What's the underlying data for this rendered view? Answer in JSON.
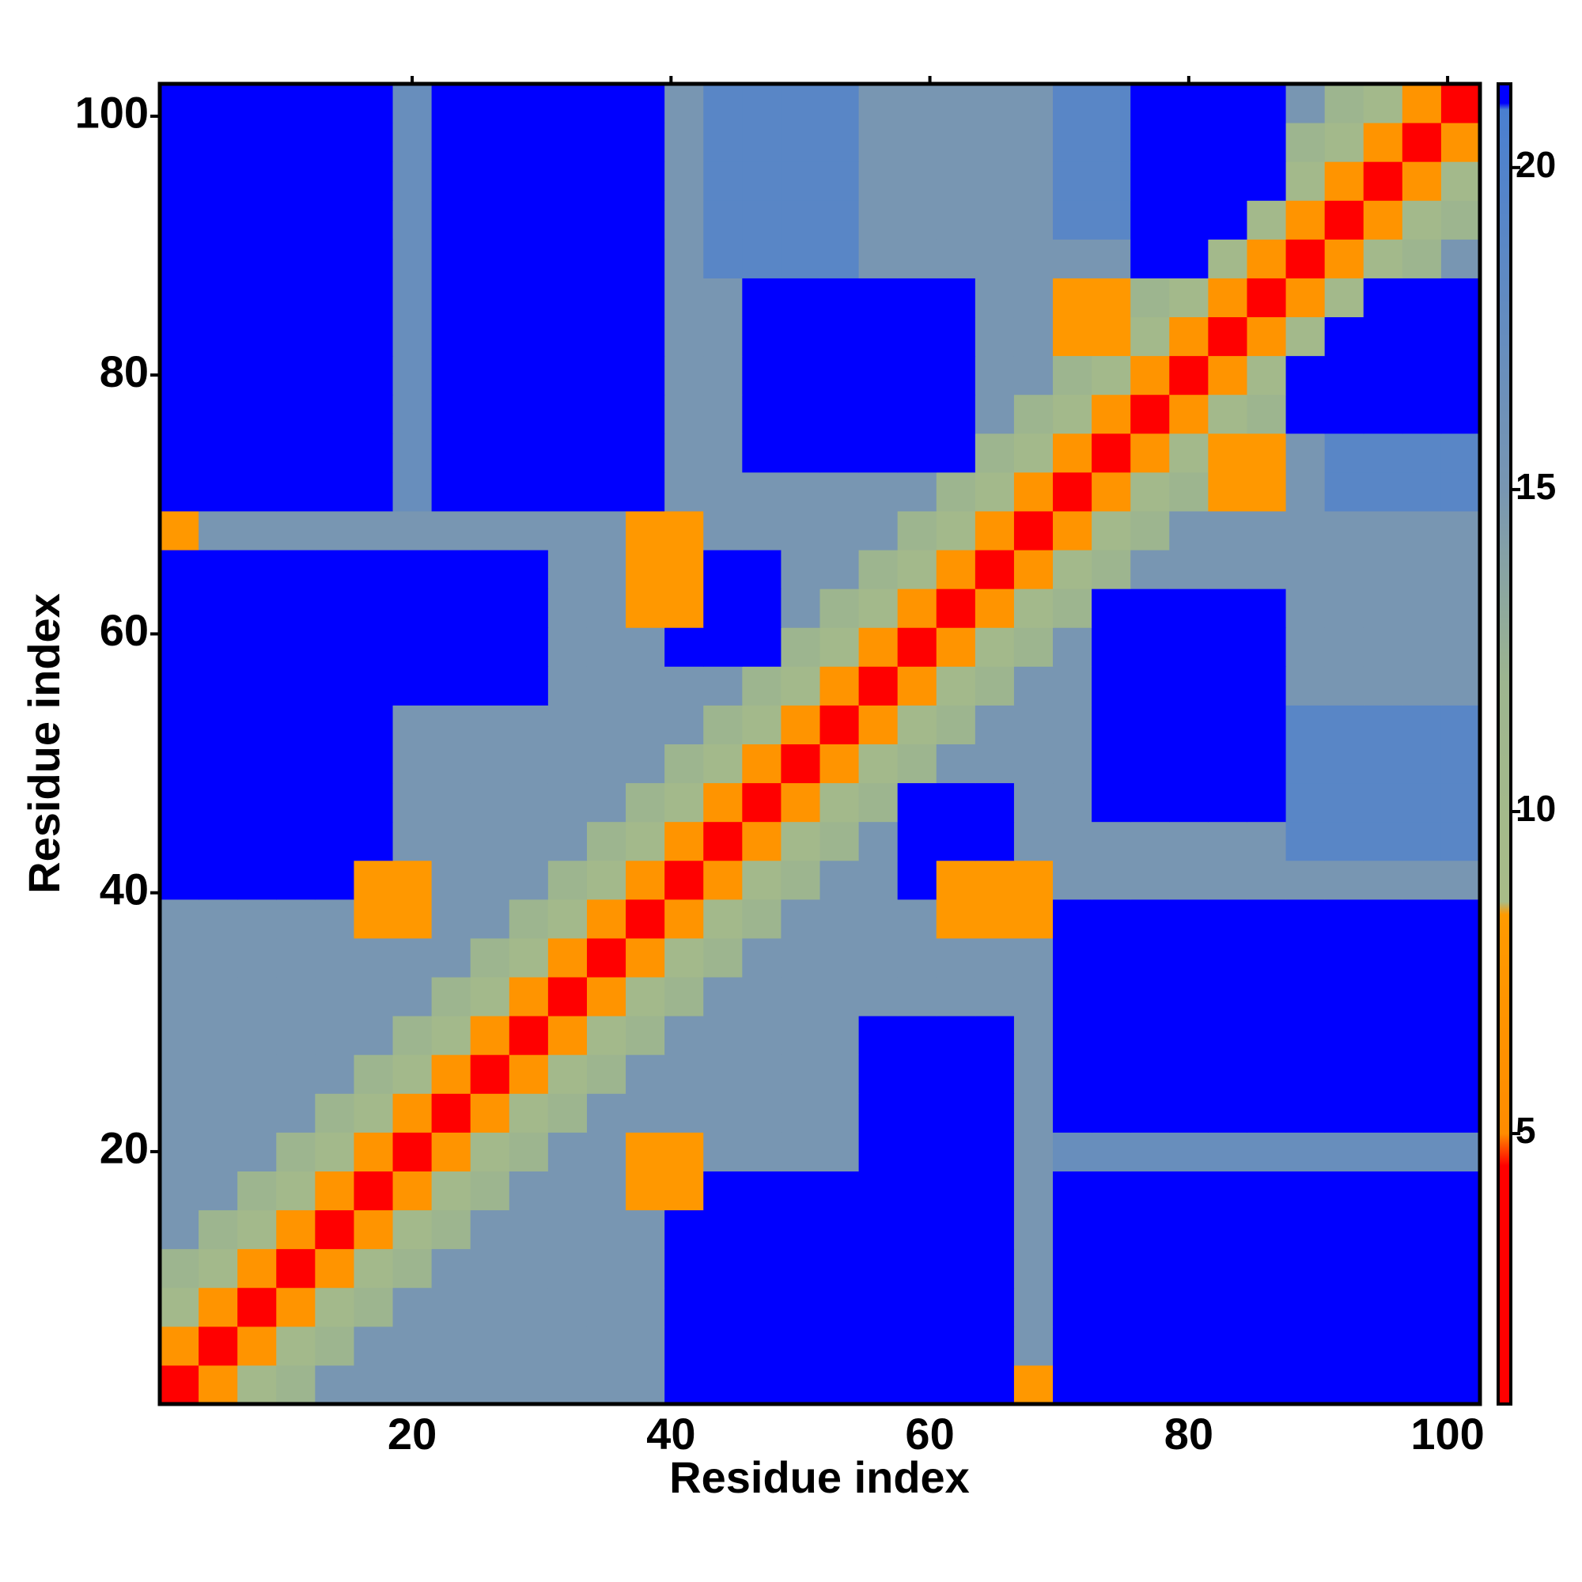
{
  "chart_data": {
    "type": "heatmap",
    "xlabel": "Residue index",
    "ylabel": "Residue index",
    "xlim": [
      0.5,
      102.5
    ],
    "ylim": [
      0.5,
      102.5
    ],
    "xticks": [
      20,
      40,
      60,
      80,
      100
    ],
    "yticks": [
      20,
      40,
      60,
      80,
      100
    ],
    "x_edges": [
      0.5,
      3.5,
      6.5,
      9.5,
      12.5,
      15.5,
      18.5,
      21.5,
      24.5,
      27.5,
      30.5,
      33.5,
      36.5,
      39.5,
      42.5,
      45.5,
      48.5,
      51.5,
      54.5,
      57.5,
      60.5,
      63.5,
      66.5,
      69.5,
      72.5,
      75.5,
      78.5,
      81.5,
      84.5,
      87.5,
      90.5,
      93.5,
      96.5,
      99.5,
      102.5
    ],
    "y_edges": [
      0.5,
      3.5,
      6.5,
      9.5,
      12.5,
      15.5,
      18.5,
      21.5,
      24.5,
      27.5,
      30.5,
      33.5,
      36.5,
      39.5,
      42.5,
      45.5,
      48.5,
      51.5,
      54.5,
      57.5,
      60.5,
      63.5,
      66.5,
      69.5,
      72.5,
      75.5,
      78.5,
      81.5,
      84.5,
      87.5,
      90.5,
      93.5,
      96.5,
      99.5,
      102.5
    ],
    "clim": [
      0.8,
      21.3
    ],
    "cticks": [
      5,
      10,
      15,
      20
    ],
    "colorscale": [
      {
        "value": 0.8,
        "color": "#ff0000"
      },
      {
        "value": 4.5,
        "color": "#ff0000"
      },
      {
        "value": 5.0,
        "color": "#ff8c00"
      },
      {
        "value": 8.4,
        "color": "#ff9a00"
      },
      {
        "value": 8.6,
        "color": "#a8bc88"
      },
      {
        "value": 12,
        "color": "#9db58f"
      },
      {
        "value": 15,
        "color": "#7896b2"
      },
      {
        "value": 20.9,
        "color": "#4a7fd0"
      },
      {
        "value": 21.0,
        "color": "#0000ff"
      },
      {
        "value": 21.3,
        "color": "#0000ff"
      }
    ],
    "z": [
      [
        4,
        7,
        10,
        12,
        15,
        15,
        15,
        15,
        15,
        15,
        15,
        15,
        15,
        21,
        21,
        21,
        21,
        21,
        21,
        21,
        21,
        21,
        8,
        21,
        21,
        21,
        21,
        21,
        21,
        21,
        21,
        21,
        21,
        21
      ],
      [
        7,
        4,
        7,
        10,
        12,
        15,
        15,
        15,
        15,
        15,
        15,
        15,
        15,
        21,
        21,
        21,
        21,
        21,
        21,
        21,
        21,
        21,
        15,
        21,
        21,
        21,
        21,
        21,
        21,
        21,
        21,
        21,
        21,
        21
      ],
      [
        10,
        7,
        4,
        7,
        10,
        12,
        15,
        15,
        15,
        15,
        15,
        15,
        15,
        21,
        21,
        21,
        21,
        21,
        21,
        21,
        21,
        21,
        15,
        21,
        21,
        21,
        21,
        21,
        21,
        21,
        21,
        21,
        21,
        21
      ],
      [
        12,
        10,
        7,
        4,
        7,
        10,
        12,
        15,
        15,
        15,
        15,
        15,
        15,
        21,
        21,
        21,
        21,
        21,
        21,
        21,
        21,
        21,
        15,
        21,
        21,
        21,
        21,
        21,
        21,
        21,
        21,
        21,
        21,
        21
      ],
      [
        15,
        12,
        10,
        7,
        4,
        7,
        10,
        12,
        15,
        15,
        15,
        15,
        15,
        21,
        21,
        21,
        21,
        21,
        21,
        21,
        21,
        21,
        15,
        21,
        21,
        21,
        21,
        21,
        21,
        21,
        21,
        21,
        21,
        21
      ],
      [
        15,
        15,
        12,
        10,
        7,
        4,
        7,
        10,
        12,
        15,
        15,
        15,
        8,
        8,
        21,
        21,
        21,
        21,
        21,
        21,
        21,
        21,
        15,
        21,
        21,
        21,
        21,
        21,
        21,
        21,
        21,
        21,
        21,
        21
      ],
      [
        15,
        15,
        15,
        12,
        10,
        7,
        4,
        7,
        10,
        12,
        15,
        15,
        8,
        8,
        15,
        15,
        15,
        15,
        21,
        21,
        21,
        21,
        15,
        17,
        17,
        17,
        17,
        17,
        17,
        17,
        17,
        17,
        17,
        17
      ],
      [
        15,
        15,
        15,
        15,
        12,
        10,
        7,
        4,
        7,
        10,
        12,
        15,
        15,
        15,
        15,
        15,
        15,
        15,
        21,
        21,
        21,
        21,
        15,
        21,
        21,
        21,
        21,
        21,
        21,
        21,
        21,
        21,
        21,
        21
      ],
      [
        15,
        15,
        15,
        15,
        15,
        12,
        10,
        7,
        4,
        7,
        10,
        12,
        15,
        15,
        15,
        15,
        15,
        15,
        21,
        21,
        21,
        21,
        15,
        21,
        21,
        21,
        21,
        21,
        21,
        21,
        21,
        21,
        21,
        21
      ],
      [
        15,
        15,
        15,
        15,
        15,
        15,
        12,
        10,
        7,
        4,
        7,
        10,
        12,
        15,
        15,
        15,
        15,
        15,
        21,
        21,
        21,
        21,
        15,
        21,
        21,
        21,
        21,
        21,
        21,
        21,
        21,
        21,
        21,
        21
      ],
      [
        15,
        15,
        15,
        15,
        15,
        15,
        15,
        12,
        10,
        7,
        4,
        7,
        10,
        12,
        15,
        15,
        15,
        15,
        15,
        15,
        15,
        15,
        15,
        21,
        21,
        21,
        21,
        21,
        21,
        21,
        21,
        21,
        21,
        21
      ],
      [
        15,
        15,
        15,
        15,
        15,
        15,
        15,
        15,
        12,
        10,
        7,
        4,
        7,
        10,
        12,
        15,
        15,
        15,
        15,
        15,
        15,
        15,
        15,
        21,
        21,
        21,
        21,
        21,
        21,
        21,
        21,
        21,
        21,
        21
      ],
      [
        15,
        15,
        15,
        15,
        15,
        8,
        8,
        15,
        15,
        12,
        10,
        7,
        4,
        7,
        10,
        12,
        15,
        15,
        15,
        15,
        8,
        8,
        8,
        21,
        21,
        21,
        21,
        21,
        21,
        21,
        21,
        21,
        21,
        21
      ],
      [
        21,
        21,
        21,
        21,
        21,
        8,
        8,
        15,
        15,
        15,
        12,
        10,
        7,
        4,
        7,
        10,
        12,
        15,
        15,
        21,
        8,
        8,
        8,
        15,
        15,
        15,
        15,
        15,
        15,
        15,
        15,
        15,
        15,
        15
      ],
      [
        21,
        21,
        21,
        21,
        21,
        21,
        15,
        15,
        15,
        15,
        15,
        12,
        10,
        7,
        4,
        7,
        10,
        12,
        15,
        21,
        21,
        21,
        15,
        15,
        15,
        15,
        15,
        15,
        15,
        19,
        19,
        19,
        19,
        19
      ],
      [
        21,
        21,
        21,
        21,
        21,
        21,
        15,
        15,
        15,
        15,
        15,
        15,
        12,
        10,
        7,
        4,
        7,
        10,
        12,
        21,
        21,
        21,
        15,
        15,
        21,
        21,
        21,
        21,
        21,
        19,
        19,
        19,
        19,
        19
      ],
      [
        21,
        21,
        21,
        21,
        21,
        21,
        15,
        15,
        15,
        15,
        15,
        15,
        15,
        12,
        10,
        7,
        4,
        7,
        10,
        12,
        15,
        15,
        15,
        15,
        21,
        21,
        21,
        21,
        21,
        19,
        19,
        19,
        19,
        19
      ],
      [
        21,
        21,
        21,
        21,
        21,
        21,
        15,
        15,
        15,
        15,
        15,
        15,
        15,
        15,
        12,
        10,
        7,
        4,
        7,
        10,
        12,
        15,
        15,
        15,
        21,
        21,
        21,
        21,
        21,
        19,
        19,
        19,
        19,
        19
      ],
      [
        21,
        21,
        21,
        21,
        21,
        21,
        21,
        21,
        21,
        21,
        15,
        15,
        15,
        15,
        15,
        12,
        10,
        7,
        4,
        7,
        10,
        12,
        15,
        15,
        21,
        21,
        21,
        21,
        21,
        15,
        15,
        15,
        15,
        15
      ],
      [
        21,
        21,
        21,
        21,
        21,
        21,
        21,
        21,
        21,
        21,
        15,
        15,
        15,
        21,
        21,
        21,
        12,
        10,
        7,
        4,
        7,
        10,
        12,
        15,
        21,
        21,
        21,
        21,
        21,
        15,
        15,
        15,
        15,
        15
      ],
      [
        21,
        21,
        21,
        21,
        21,
        21,
        21,
        21,
        21,
        21,
        15,
        15,
        8,
        8,
        21,
        21,
        15,
        12,
        10,
        7,
        4,
        7,
        10,
        12,
        21,
        21,
        21,
        21,
        21,
        15,
        15,
        15,
        15,
        15
      ],
      [
        21,
        21,
        21,
        21,
        21,
        21,
        21,
        21,
        21,
        21,
        15,
        15,
        8,
        8,
        21,
        21,
        15,
        15,
        12,
        10,
        7,
        4,
        7,
        10,
        12,
        15,
        15,
        15,
        15,
        15,
        15,
        15,
        15,
        15
      ],
      [
        8,
        15,
        15,
        15,
        15,
        15,
        15,
        15,
        15,
        15,
        15,
        15,
        8,
        8,
        15,
        15,
        15,
        15,
        15,
        12,
        10,
        7,
        4,
        7,
        10,
        12,
        15,
        15,
        15,
        15,
        15,
        15,
        15,
        15
      ],
      [
        21,
        21,
        21,
        21,
        21,
        21,
        17,
        21,
        21,
        21,
        21,
        21,
        21,
        15,
        15,
        15,
        15,
        15,
        15,
        15,
        12,
        10,
        7,
        4,
        7,
        10,
        12,
        8,
        8,
        15,
        19,
        19,
        19,
        19
      ],
      [
        21,
        21,
        21,
        21,
        21,
        21,
        17,
        21,
        21,
        21,
        21,
        21,
        21,
        15,
        15,
        21,
        21,
        21,
        21,
        21,
        21,
        12,
        10,
        7,
        4,
        7,
        10,
        8,
        8,
        15,
        19,
        19,
        19,
        19
      ],
      [
        21,
        21,
        21,
        21,
        21,
        21,
        17,
        21,
        21,
        21,
        21,
        21,
        21,
        15,
        15,
        21,
        21,
        21,
        21,
        21,
        21,
        15,
        12,
        10,
        7,
        4,
        7,
        10,
        12,
        21,
        21,
        21,
        21,
        21
      ],
      [
        21,
        21,
        21,
        21,
        21,
        21,
        17,
        21,
        21,
        21,
        21,
        21,
        21,
        15,
        15,
        21,
        21,
        21,
        21,
        21,
        21,
        15,
        15,
        12,
        10,
        7,
        4,
        7,
        10,
        21,
        21,
        21,
        21,
        21
      ],
      [
        21,
        21,
        21,
        21,
        21,
        21,
        17,
        21,
        21,
        21,
        21,
        21,
        21,
        15,
        15,
        21,
        21,
        21,
        21,
        21,
        21,
        15,
        15,
        8,
        8,
        10,
        7,
        4,
        7,
        10,
        21,
        21,
        21,
        21
      ],
      [
        21,
        21,
        21,
        21,
        21,
        21,
        17,
        21,
        21,
        21,
        21,
        21,
        21,
        15,
        15,
        21,
        21,
        21,
        21,
        21,
        21,
        15,
        15,
        8,
        8,
        12,
        10,
        7,
        4,
        7,
        10,
        21,
        21,
        21
      ],
      [
        21,
        21,
        21,
        21,
        21,
        21,
        17,
        21,
        21,
        21,
        21,
        21,
        21,
        15,
        19,
        19,
        19,
        19,
        15,
        15,
        15,
        15,
        15,
        15,
        15,
        21,
        21,
        10,
        7,
        4,
        7,
        10,
        12,
        15
      ],
      [
        21,
        21,
        21,
        21,
        21,
        21,
        17,
        21,
        21,
        21,
        21,
        21,
        21,
        15,
        19,
        19,
        19,
        19,
        15,
        15,
        15,
        15,
        15,
        19,
        19,
        21,
        21,
        21,
        10,
        7,
        4,
        7,
        10,
        12
      ],
      [
        21,
        21,
        21,
        21,
        21,
        21,
        17,
        21,
        21,
        21,
        21,
        21,
        21,
        15,
        19,
        19,
        19,
        19,
        15,
        15,
        15,
        15,
        15,
        19,
        19,
        21,
        21,
        21,
        21,
        10,
        7,
        4,
        7,
        10
      ],
      [
        21,
        21,
        21,
        21,
        21,
        21,
        17,
        21,
        21,
        21,
        21,
        21,
        21,
        15,
        19,
        19,
        19,
        19,
        15,
        15,
        15,
        15,
        15,
        19,
        19,
        21,
        21,
        21,
        21,
        12,
        10,
        7,
        4,
        7
      ],
      [
        21,
        21,
        21,
        21,
        21,
        21,
        17,
        21,
        21,
        21,
        21,
        21,
        21,
        15,
        19,
        19,
        19,
        19,
        15,
        15,
        15,
        15,
        15,
        19,
        19,
        21,
        21,
        21,
        21,
        15,
        12,
        10,
        7,
        4
      ]
    ]
  }
}
